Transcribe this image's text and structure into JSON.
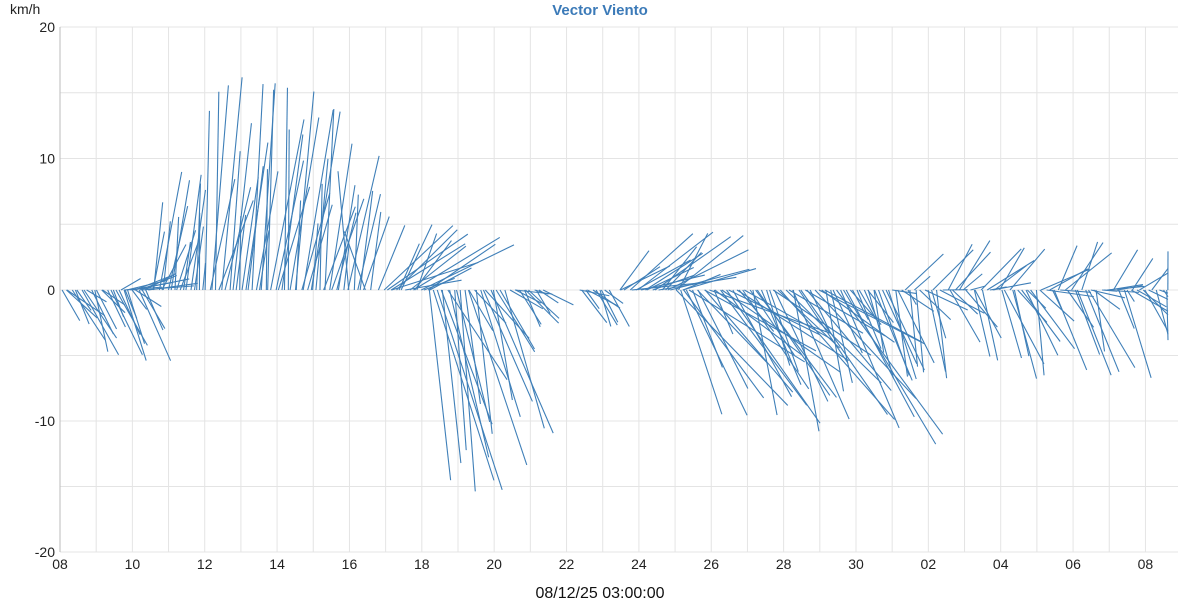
{
  "chart_data": {
    "type": "vector",
    "title": "Vector Viento",
    "ylabel": "km/h",
    "ylim": [
      -20,
      20
    ],
    "yticks": [
      "20",
      "10",
      "0",
      "-10",
      "-20"
    ],
    "ytick_values": [
      20,
      10,
      0,
      -10,
      -20
    ],
    "xlim": [
      0,
      30.9
    ],
    "xticks": [
      "08",
      "10",
      "12",
      "14",
      "16",
      "18",
      "20",
      "22",
      "24",
      "26",
      "28",
      "30",
      "02",
      "04",
      "06",
      "08"
    ],
    "xtick_values": [
      0,
      2,
      4,
      6,
      8,
      10,
      12,
      14,
      16,
      18,
      20,
      22,
      24,
      26,
      28,
      30
    ],
    "footer": "08/12/25 03:00:00",
    "grid": true,
    "color": "#3f7fb8",
    "series": [
      {
        "u_range": [
          0.2,
          1.2
        ],
        "v_range": [
          -5.5,
          -0.5
        ],
        "start": 0.0,
        "end": 2.4
      },
      {
        "u_range": [
          0.3,
          1.6
        ],
        "v_range": [
          0.2,
          1.5
        ],
        "start": 1.6,
        "end": 2.5
      },
      {
        "u_range": [
          0.0,
          0.8
        ],
        "v_range": [
          1.0,
          9.0
        ],
        "start": 2.5,
        "end": 4.0
      },
      {
        "u_range": [
          0.0,
          1.0
        ],
        "v_range": [
          4.0,
          16.5
        ],
        "start": 4.0,
        "end": 7.5
      },
      {
        "u_range": [
          -0.7,
          1.3
        ],
        "v_range": [
          3.0,
          12.0
        ],
        "start": 7.5,
        "end": 8.6
      },
      {
        "u_range": [
          0.5,
          3.0
        ],
        "v_range": [
          0.5,
          5.0
        ],
        "start": 8.8,
        "end": 10.3
      },
      {
        "u_range": [
          0.3,
          2.0
        ],
        "v_range": [
          -16.0,
          -2.0
        ],
        "start": 10.2,
        "end": 12.3
      },
      {
        "u_range": [
          0.2,
          1.1
        ],
        "v_range": [
          -3.0,
          -0.2
        ],
        "start": 12.4,
        "end": 13.4
      },
      {
        "u_range": [
          0.2,
          0.9
        ],
        "v_range": [
          -2.8,
          0.3
        ],
        "start": 14.3,
        "end": 15.2
      },
      {
        "u_range": [
          0.8,
          2.5
        ],
        "v_range": [
          0.3,
          4.8
        ],
        "start": 15.4,
        "end": 17.3
      },
      {
        "u_range": [
          0.5,
          3.5
        ],
        "v_range": [
          -12.0,
          -3.0
        ],
        "start": 17.0,
        "end": 21.8
      },
      {
        "u_range": [
          0.2,
          1.2
        ],
        "v_range": [
          -7.0,
          1.0
        ],
        "start": 21.8,
        "end": 23.3
      },
      {
        "u_range": [
          0.2,
          1.4
        ],
        "v_range": [
          -7.0,
          4.0
        ],
        "start": 23.3,
        "end": 30.7
      }
    ]
  }
}
